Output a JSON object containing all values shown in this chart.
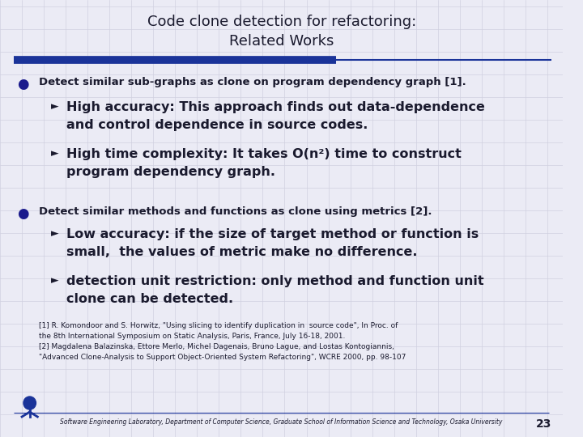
{
  "title_line1": "Code clone detection for refactoring:",
  "title_line2": "Related Works",
  "title_color": "#1a1a2e",
  "title_fontsize": 13,
  "bg_color": "#ebebf5",
  "grid_color": "#d0d0e0",
  "blue_bar_thick_color": "#1a3399",
  "blue_bar_thin_color": "#1a3399",
  "bullet_color": "#1a1a8c",
  "text_color": "#1a1a2e",
  "bullet1": "Detect similar sub-graphs as clone on program dependency graph [1].",
  "sub1a_line1": "High accuracy: This approach finds out data-dependence",
  "sub1a_line2": "and control dependence in source codes.",
  "sub1b_line1": "High time complexity: It takes O(n²) time to construct",
  "sub1b_line2": "program dependency graph.",
  "bullet2": "Detect similar methods and functions as clone using metrics [2].",
  "sub2a_line1": "Low accuracy: if the size of target method or function is",
  "sub2a_line2": "small,  the values of metric make no difference.",
  "sub2b_line1": "detection unit restriction: only method and function unit",
  "sub2b_line2": "clone can be detected.",
  "ref1_line1": "[1] R. Komondoor and S. Horwitz, \"Using slicing to identify duplication in  source code\", In Proc. of",
  "ref1_line2": "the 8th International Symposium on Static Analysis, Paris, France, July 16-18, 2001.",
  "ref2_line1": "[2] Magdalena Balazinska, Ettore Merlo, Michel Dagenais, Bruno Lague, and Lostas Kontogiannis,",
  "ref2_line2": "\"Advanced Clone-Analysis to Support Object-Oriented System Refactoring\", WCRE 2000, pp. 98-107",
  "footer": "Software Engineering Laboratory, Department of Computer Science, Graduate School of Information Science and Technology, Osaka University",
  "page_number": "23",
  "bullet1_fontsize": 9.5,
  "bullet2_fontsize": 9.5,
  "sub_fontsize": 11.5,
  "ref_fontsize": 6.5,
  "footer_fontsize": 5.5
}
